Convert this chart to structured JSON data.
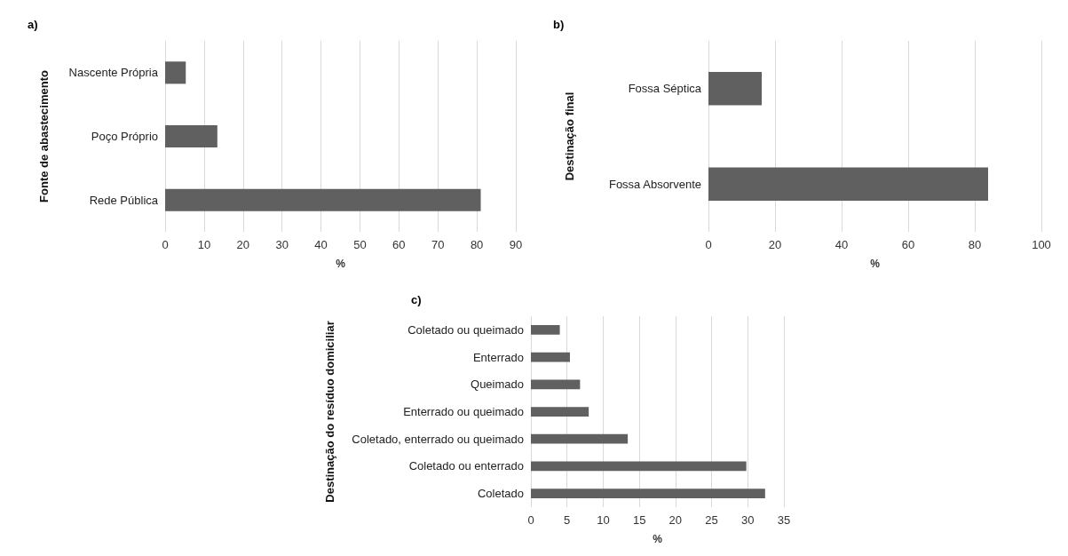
{
  "chart_data": [
    {
      "type": "bar",
      "orientation": "horizontal",
      "title": "a)",
      "xlabel": "%",
      "ylabel": "Fonte de abastecimento",
      "categories": [
        "Nascente Própria",
        "Poço Próprio",
        "Rede Pública"
      ],
      "values": [
        5.3,
        13.4,
        81.0
      ],
      "color": "#606060",
      "xlim": [
        0,
        90
      ],
      "xticks": [
        0,
        10,
        20,
        30,
        40,
        50,
        60,
        70,
        80,
        90
      ],
      "grid": "x"
    },
    {
      "type": "bar",
      "orientation": "horizontal",
      "title": "b)",
      "xlabel": "%",
      "ylabel": "Destinação final",
      "categories": [
        "Fossa Séptica",
        "Fossa Absorvente"
      ],
      "values": [
        16,
        84
      ],
      "color": "#606060",
      "xlim": [
        0,
        100
      ],
      "xticks": [
        0,
        20,
        40,
        60,
        80,
        100
      ],
      "grid": "x"
    },
    {
      "type": "bar",
      "orientation": "horizontal",
      "title": "c)",
      "xlabel": "%",
      "ylabel": "Destinação do resíduo domiciliar",
      "categories": [
        "Coletado ou queimado",
        "Enterrado",
        "Queimado",
        "Enterrado ou queimado",
        "Coletado, enterrado ou queimado",
        "Coletado ou enterrado",
        "Coletado"
      ],
      "values": [
        4.0,
        5.4,
        6.8,
        8.0,
        13.4,
        29.8,
        32.4
      ],
      "color": "#606060",
      "xlim": [
        0,
        35
      ],
      "xticks": [
        0,
        5,
        10,
        15,
        20,
        25,
        30,
        35
      ],
      "grid": "x"
    }
  ]
}
